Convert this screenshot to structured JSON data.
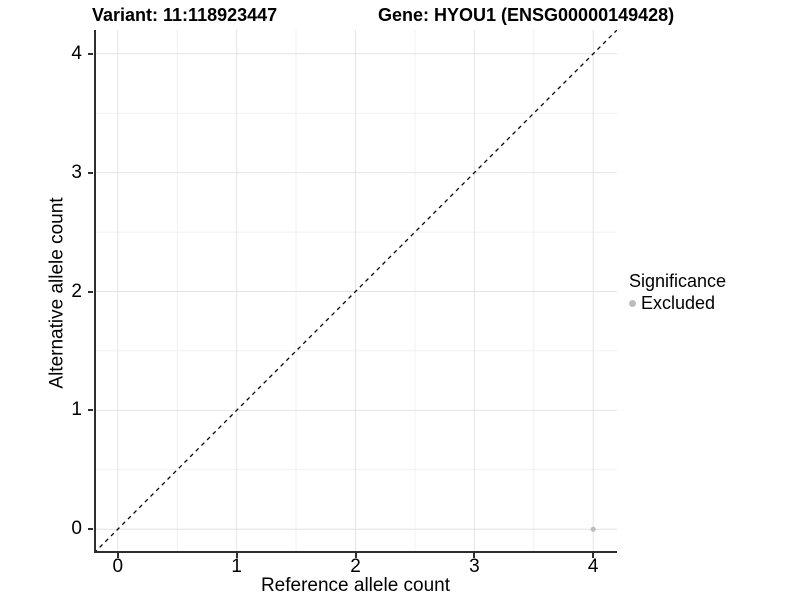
{
  "titles": {
    "variant": "Variant: 11:118923447",
    "gene": "Gene: HYOU1 (ENSG00000149428)"
  },
  "axes": {
    "x_label": "Reference allele count",
    "y_label": "Alternative allele count"
  },
  "legend": {
    "title": "Significance",
    "items": [
      {
        "label": "Excluded",
        "color": "#bdbdbd"
      }
    ]
  },
  "colors": {
    "axis_line": "#2e2e2e",
    "grid_major": "#e4e4e4",
    "grid_minor": "#f1f1f1",
    "reference_line": "#000000",
    "point": "#bdbdbd",
    "text": "#000000"
  },
  "chart_data": {
    "type": "scatter",
    "title_left": "Variant: 11:118923447",
    "title_right": "Gene: HYOU1 (ENSG00000149428)",
    "xlabel": "Reference allele count",
    "ylabel": "Alternative allele count",
    "xlim": [
      -0.2,
      4.2
    ],
    "ylim": [
      -0.2,
      4.2
    ],
    "x_ticks": [
      0,
      1,
      2,
      3,
      4
    ],
    "y_ticks": [
      0,
      1,
      2,
      3,
      4
    ],
    "x_minor": [
      0.5,
      1.5,
      2.5,
      3.5
    ],
    "y_minor": [
      0.5,
      1.5,
      2.5,
      3.5
    ],
    "grid": true,
    "legend_position": "right",
    "reference_line": {
      "type": "identity",
      "style": "dashed"
    },
    "series": [
      {
        "name": "Excluded",
        "color": "#bdbdbd",
        "points": [
          {
            "x": 4,
            "y": 0
          }
        ]
      }
    ]
  }
}
